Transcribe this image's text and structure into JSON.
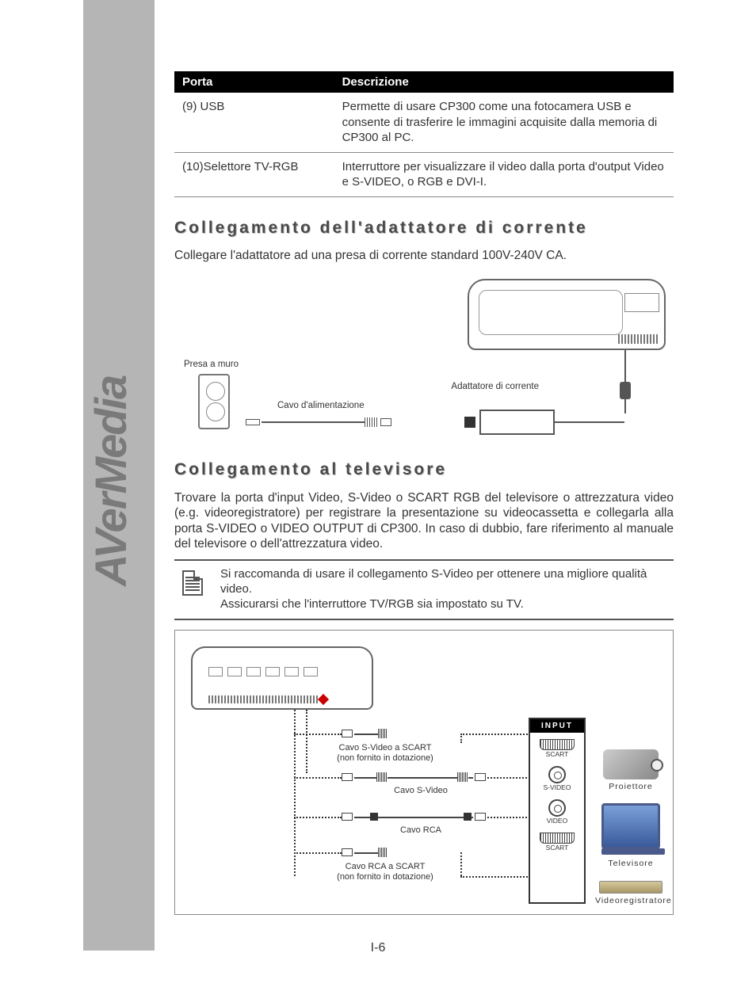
{
  "brand": "AVerMedia",
  "table": {
    "headers": {
      "col1": "Porta",
      "col2": "Descrizione"
    },
    "rows": [
      {
        "port": "(9)  USB",
        "desc": "Permette di usare CP300 come una fotocamera USB e consente di trasferire le immagini acquisite dalla memoria di CP300 al PC."
      },
      {
        "port": "(10)Selettore TV-RGB",
        "desc": "Interruttore per visualizzare il video dalla porta d'output Video e S-VIDEO, o RGB e DVI-I."
      }
    ]
  },
  "section1": {
    "title": "Collegamento dell'adattatore di corrente",
    "body": "Collegare l'adattatore ad una presa di corrente standard 100V-240V CA.",
    "labels": {
      "outlet": "Presa a muro",
      "powercable": "Cavo d'alimentazione",
      "adapter": "Adattatore di corrente"
    }
  },
  "section2": {
    "title": "Collegamento al televisore",
    "body": "Trovare la porta d'input Video, S-Video o SCART RGB del televisore o attrezzatura video (e.g. videoregistratore) per registrare la presentazione su videocassetta e collegarla alla porta S-VIDEO o VIDEO OUTPUT di CP300. In caso di dubbio, fare riferimento al manuale del televisore o dell'attrezzatura video.",
    "note": "Si raccomanda di usare il collegamento S-Video per ottenere una migliore qualità video.\nAssicurarsi che l'interruttore TV/RGB sia impostato su TV.",
    "diagram": {
      "input_label": "INPUT",
      "scart1": "SCART",
      "svideo": "S-VIDEO",
      "video": "VIDEO",
      "scart2": "SCART",
      "cable_svideo_scart": "Cavo S-Video a SCART\n(non fornito in dotazione)",
      "cable_svideo": "Cavo S-Video",
      "cable_rca": "Cavo RCA",
      "cable_rca_scart": "Cavo RCA a SCART\n(non fornito in dotazione)",
      "projector": "Proiettore",
      "tv": "Televisore",
      "vcr": "Videoregistratore"
    }
  },
  "pagenum": "I-6",
  "colors": {
    "sidebar": "#b5b5b5",
    "heading": "#4a4a4a",
    "text": "#333333",
    "table_header_bg": "#000000",
    "table_header_fg": "#ffffff"
  }
}
